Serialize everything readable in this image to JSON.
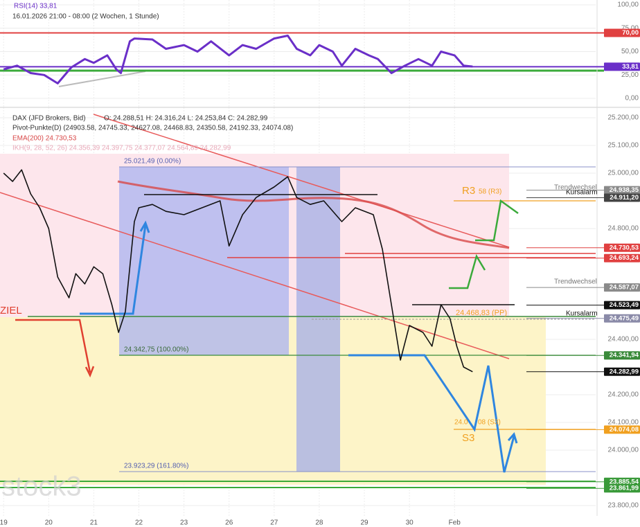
{
  "chart_data": [
    {
      "type": "line",
      "title": "RSI(14) 33,81",
      "subtitle": "16.01.2026 21:00 - 08:00 (2 Wochen, 1 Stunde)",
      "x": [
        0,
        0.3,
        0.6,
        0.9,
        1.2,
        1.5,
        1.8,
        2.0,
        2.3,
        2.5,
        2.6,
        2.8,
        2.9,
        3.3,
        3.6,
        4.0,
        4.3,
        4.6,
        5.0,
        5.3,
        5.6,
        6.0,
        6.3,
        6.5,
        6.8,
        7.0,
        7.3,
        7.5,
        7.8,
        8.1,
        8.3,
        8.6,
        8.9,
        9.2,
        9.5,
        9.7,
        10.0,
        10.2,
        10.4
      ],
      "series": [
        {
          "name": "RSI(14)",
          "color": "#6a2fc8",
          "values": [
            31,
            35,
            27,
            25,
            16,
            33,
            42,
            38,
            46,
            31,
            27,
            61,
            64,
            63,
            53,
            57,
            50,
            61,
            46,
            57,
            53,
            64,
            67,
            53,
            46,
            57,
            50,
            35,
            53,
            46,
            42,
            27,
            35,
            42,
            35,
            50,
            46,
            35,
            34
          ]
        }
      ],
      "xlim": [
        -0.08,
        13.13
      ],
      "ylim": [
        0,
        100
      ],
      "yticks": [
        {
          "value": 100,
          "label": "100,00"
        },
        {
          "value": 75,
          "label": "75,00"
        },
        {
          "value": 50,
          "label": "50,00"
        },
        {
          "value": 25,
          "label": "25,00"
        },
        {
          "value": 0,
          "label": "0,00"
        }
      ],
      "levels": [
        {
          "value": 70,
          "label": "70,00",
          "color": "#e04040"
        },
        {
          "value": 33.81,
          "label": "33,81",
          "color": "#6a2fc8"
        }
      ],
      "grid": true
    },
    {
      "type": "line",
      "title": "DAX (JFD Brokers, Bid)",
      "subtitle": "O: 24.288,51  H: 24.316,24  L: 24.253,84  C: 24.282,99",
      "indicators": [
        "Pivot-Punkte(D)  (24903.58,  24745.33,  24627.08,  24468.83,  24350.58,  24192.33,  24074.08)",
        "EMA(200)  24.730,53",
        "IKH(9, 28, 52, 26)  24.356,39  24.397,75  24.377,07  24.564,89  24.282,99"
      ],
      "annotations": [
        "25.021,49 (0.00%)",
        "24.342,75 (100.00%)",
        "23.923,29 (161.80%)",
        "ZIEL",
        "R3",
        "58 (R3)",
        "24.468,83 (PP)",
        "S3",
        "24.0",
        "08 (S3)",
        "Trendwechsel",
        "Trendwechsel",
        "Kursalarm",
        "Kursalarm",
        "stock3"
      ],
      "x": [
        0,
        0.2,
        0.4,
        0.6,
        0.8,
        1.0,
        1.2,
        1.45,
        1.6,
        1.8,
        2.0,
        2.2,
        2.4,
        2.55,
        2.7,
        2.9,
        3.0,
        3.3,
        3.6,
        4.0,
        4.4,
        4.8,
        5.0,
        5.3,
        5.6,
        6.0,
        6.3,
        6.5,
        6.8,
        7.1,
        7.5,
        7.8,
        8.2,
        8.4,
        8.6,
        8.8,
        9.0,
        9.3,
        9.5,
        9.7,
        9.9,
        10.05,
        10.2,
        10.4
      ],
      "series": [
        {
          "name": "DAX",
          "color": "#111111",
          "values": [
            25000,
            24970,
            25012,
            24925,
            24875,
            24800,
            24625,
            24550,
            24637,
            24600,
            24662,
            24637,
            24525,
            24425,
            24500,
            24825,
            24875,
            24887,
            24862,
            24850,
            24875,
            24900,
            24737,
            24850,
            24912,
            24950,
            24987,
            24912,
            24887,
            24900,
            24825,
            24875,
            24850,
            24725,
            24525,
            24325,
            24450,
            24425,
            24375,
            24525,
            24475,
            24375,
            24300,
            24283
          ]
        }
      ],
      "xlim": [
        -0.08,
        13.13
      ],
      "xticks": [
        {
          "value": 0,
          "label": "19"
        },
        {
          "value": 1,
          "label": "20"
        },
        {
          "value": 2,
          "label": "21"
        },
        {
          "value": 3,
          "label": "22"
        },
        {
          "value": 4,
          "label": "23"
        },
        {
          "value": 5,
          "label": "26"
        },
        {
          "value": 6,
          "label": "27"
        },
        {
          "value": 7,
          "label": "28"
        },
        {
          "value": 8,
          "label": "29"
        },
        {
          "value": 9,
          "label": "30"
        },
        {
          "value": 10,
          "label": "Feb"
        }
      ],
      "ylim": [
        23775,
        25225
      ],
      "yticks": [
        {
          "value": 25200,
          "label": "25.200,00"
        },
        {
          "value": 25100,
          "label": "25.100,00"
        },
        {
          "value": 25000,
          "label": "25.000,00"
        },
        {
          "value": 24800,
          "label": "24.800,00"
        },
        {
          "value": 24400,
          "label": "24.400,00"
        },
        {
          "value": 24200,
          "label": "24.200,00"
        },
        {
          "value": 24100,
          "label": "24.100,00"
        },
        {
          "value": 24000,
          "label": "24.000,00"
        },
        {
          "value": 23800,
          "label": "23.800,00"
        }
      ],
      "levels": [
        {
          "value": 24938.35,
          "label": "24.938,35",
          "color": "#8a8a8a"
        },
        {
          "value": 24911.2,
          "label": "24.911,20",
          "color": "#444444"
        },
        {
          "value": 24730.53,
          "label": "24.730,53",
          "color": "#e04040"
        },
        {
          "value": 24693.24,
          "label": "24.693,24",
          "color": "#e04040"
        },
        {
          "value": 24587.07,
          "label": "24.587,07",
          "color": "#8a8a8a"
        },
        {
          "value": 24523.49,
          "label": "24.523,49",
          "color": "#111111"
        },
        {
          "value": 24475.49,
          "label": "24.475,49",
          "color": "#8a8aa8"
        },
        {
          "value": 24341.94,
          "label": "24.341,94",
          "color": "#3a8a3a"
        },
        {
          "value": 24282.99,
          "label": "24.282,99",
          "color": "#111111"
        },
        {
          "value": 24074.08,
          "label": "24.074,08",
          "color": "#f0a020"
        },
        {
          "value": 23885.54,
          "label": "23.885,54",
          "color": "#3a9a3a"
        },
        {
          "value": 23861.99,
          "label": "23.861,99",
          "color": "#3a9a3a"
        }
      ],
      "grid": true
    }
  ]
}
